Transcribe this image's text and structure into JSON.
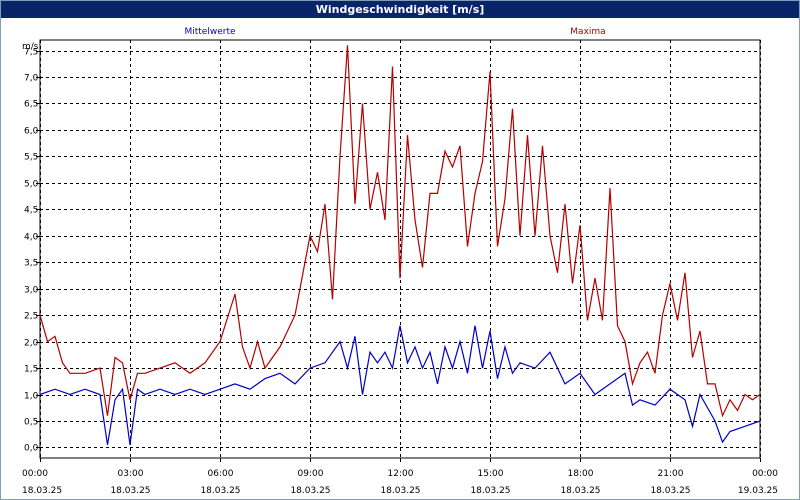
{
  "window": {
    "title": "Windgeschwindigkeit [m/s]"
  },
  "colors": {
    "mean": "#0000c8",
    "max": "#b40000",
    "titlebar": "#0a246a",
    "grid": "#000000"
  },
  "chart_data": {
    "type": "line",
    "title": "Windgeschwindigkeit [m/s]",
    "ylabel": "m/s",
    "xlabel": "",
    "ylim": [
      -0.2,
      7.7
    ],
    "xlim": [
      "18.03.25 00:00",
      "19.03.25 00:00"
    ],
    "grid": true,
    "y_ticks": [
      "0,0",
      "0,5",
      "1,0",
      "1,5",
      "2,0",
      "2,5",
      "3,0",
      "3,5",
      "4,0",
      "4,5",
      "5,0",
      "5,5",
      "6,0",
      "6,5",
      "7,0",
      "7,5"
    ],
    "x_ticks": [
      {
        "time": "00:00",
        "date": "18.03.25"
      },
      {
        "time": "03:00",
        "date": "18.03.25"
      },
      {
        "time": "06:00",
        "date": "18.03.25"
      },
      {
        "time": "09:00",
        "date": "18.03.25"
      },
      {
        "time": "12:00",
        "date": "18.03.25"
      },
      {
        "time": "15:00",
        "date": "18.03.25"
      },
      {
        "time": "18:00",
        "date": "18.03.25"
      },
      {
        "time": "21:00",
        "date": "18.03.25"
      },
      {
        "time": "00:00",
        "date": "19.03.25"
      }
    ],
    "series": [
      {
        "name": "Mittelwerte",
        "x": [
          "00:00",
          "00:30",
          "01:00",
          "01:30",
          "02:00",
          "02:15",
          "02:30",
          "02:45",
          "03:00",
          "03:15",
          "03:30",
          "04:00",
          "04:30",
          "05:00",
          "05:30",
          "06:00",
          "06:30",
          "07:00",
          "07:30",
          "08:00",
          "08:30",
          "09:00",
          "09:30",
          "10:00",
          "10:15",
          "10:30",
          "10:45",
          "11:00",
          "11:15",
          "11:30",
          "11:45",
          "12:00",
          "12:15",
          "12:30",
          "12:45",
          "13:00",
          "13:15",
          "13:30",
          "13:45",
          "14:00",
          "14:15",
          "14:30",
          "14:45",
          "15:00",
          "15:15",
          "15:30",
          "15:45",
          "16:00",
          "16:30",
          "17:00",
          "17:30",
          "18:00",
          "18:30",
          "19:00",
          "19:30",
          "19:45",
          "20:00",
          "20:30",
          "21:00",
          "21:30",
          "21:45",
          "22:00",
          "22:30",
          "22:45",
          "23:00",
          "23:30",
          "00:00"
        ],
        "values": [
          1.0,
          1.1,
          1.0,
          1.1,
          1.0,
          0.05,
          0.9,
          1.1,
          0.05,
          1.1,
          1.0,
          1.1,
          1.0,
          1.1,
          1.0,
          1.1,
          1.2,
          1.1,
          1.3,
          1.4,
          1.2,
          1.5,
          1.6,
          2.0,
          1.5,
          2.1,
          1.0,
          1.8,
          1.6,
          1.8,
          1.5,
          2.3,
          1.6,
          1.9,
          1.5,
          1.8,
          1.2,
          1.9,
          1.5,
          2.0,
          1.4,
          2.3,
          1.5,
          2.2,
          1.3,
          1.9,
          1.4,
          1.6,
          1.5,
          1.8,
          1.2,
          1.4,
          1.0,
          1.2,
          1.4,
          0.8,
          0.9,
          0.8,
          1.1,
          0.9,
          0.4,
          1.0,
          0.5,
          0.1,
          0.3,
          0.4,
          0.5
        ]
      },
      {
        "name": "Maxima",
        "x": [
          "00:00",
          "00:15",
          "00:30",
          "00:45",
          "01:00",
          "01:30",
          "02:00",
          "02:15",
          "02:30",
          "02:45",
          "03:00",
          "03:15",
          "03:30",
          "04:00",
          "04:30",
          "05:00",
          "05:30",
          "06:00",
          "06:30",
          "06:45",
          "07:00",
          "07:15",
          "07:30",
          "08:00",
          "08:30",
          "09:00",
          "09:15",
          "09:30",
          "09:45",
          "10:00",
          "10:15",
          "10:30",
          "10:45",
          "11:00",
          "11:15",
          "11:30",
          "11:45",
          "12:00",
          "12:15",
          "12:30",
          "12:45",
          "13:00",
          "13:15",
          "13:30",
          "13:45",
          "14:00",
          "14:15",
          "14:30",
          "14:45",
          "15:00",
          "15:15",
          "15:30",
          "15:45",
          "16:00",
          "16:15",
          "16:30",
          "16:45",
          "17:00",
          "17:15",
          "17:30",
          "17:45",
          "18:00",
          "18:15",
          "18:30",
          "18:45",
          "19:00",
          "19:15",
          "19:30",
          "19:45",
          "20:00",
          "20:15",
          "20:30",
          "20:45",
          "21:00",
          "21:15",
          "21:30",
          "21:45",
          "22:00",
          "22:15",
          "22:30",
          "22:45",
          "23:00",
          "23:15",
          "23:30",
          "23:45",
          "00:00"
        ],
        "values": [
          2.5,
          2.0,
          2.1,
          1.6,
          1.4,
          1.4,
          1.5,
          0.6,
          1.7,
          1.6,
          0.9,
          1.4,
          1.4,
          1.5,
          1.6,
          1.4,
          1.6,
          2.0,
          2.9,
          1.9,
          1.5,
          2.0,
          1.5,
          1.9,
          2.5,
          4.0,
          3.7,
          4.6,
          2.8,
          5.5,
          7.6,
          4.6,
          6.5,
          4.5,
          5.2,
          4.3,
          7.2,
          3.2,
          5.9,
          4.3,
          3.4,
          4.8,
          4.8,
          5.6,
          5.3,
          5.7,
          3.8,
          4.8,
          5.4,
          7.1,
          3.8,
          4.7,
          6.4,
          4.0,
          5.9,
          4.0,
          5.7,
          4.0,
          3.3,
          4.6,
          3.1,
          4.2,
          2.4,
          3.2,
          2.4,
          4.9,
          2.3,
          2.0,
          1.2,
          1.6,
          1.8,
          1.4,
          2.5,
          3.1,
          2.4,
          3.3,
          1.7,
          2.2,
          1.2,
          1.2,
          0.6,
          0.9,
          0.7,
          1.0,
          0.9,
          1.0
        ]
      }
    ]
  }
}
